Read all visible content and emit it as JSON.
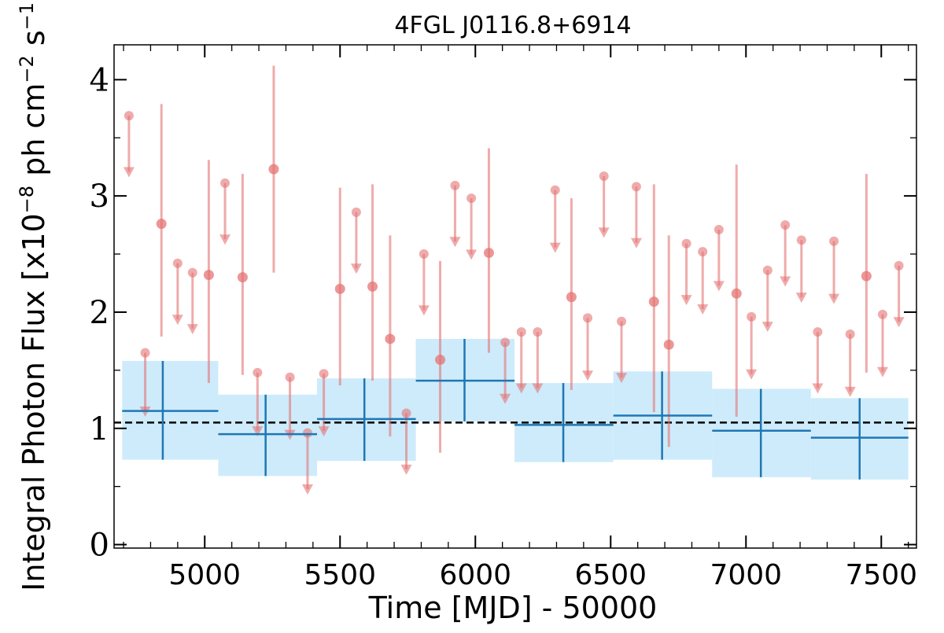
{
  "chart_data": {
    "type": "scatter",
    "title": "4FGL J0116.8+6914",
    "xlabel": "Time [MJD] - 50000",
    "ylabel_parts": {
      "pre": "Integral Photon Flux [x10",
      "exp1": "−8",
      "mid": " ph cm",
      "exp2": "−2",
      "mid2": " s",
      "exp3": "−1",
      "post": "]"
    },
    "xlim": [
      4665,
      7630
    ],
    "ylim": [
      -0.03,
      4.3
    ],
    "x_ticks": [
      5000,
      5500,
      6000,
      6500,
      7000,
      7500
    ],
    "x_tick_labels": [
      "5000",
      "5500",
      "6000",
      "6500",
      "7000",
      "7500"
    ],
    "y_ticks": [
      0,
      1,
      2,
      3,
      4
    ],
    "y_tick_labels": [
      "0",
      "1",
      "2",
      "3",
      "4"
    ],
    "reference_line": {
      "y": 1.05,
      "style": "dashed"
    },
    "colors": {
      "short_bins": "#e57373",
      "long_bins_line": "#1f77b4",
      "long_bins_band": "#cdebfb",
      "reference": "#000000"
    },
    "detections": [
      {
        "x": 4840,
        "y": 2.76,
        "ylo": 1.79,
        "yhi": 3.79
      },
      {
        "x": 5015,
        "y": 2.32,
        "ylo": 1.39,
        "yhi": 3.31
      },
      {
        "x": 5140,
        "y": 2.3,
        "ylo": 1.46,
        "yhi": 3.19
      },
      {
        "x": 5255,
        "y": 3.23,
        "ylo": 2.34,
        "yhi": 4.12
      },
      {
        "x": 5500,
        "y": 2.2,
        "ylo": 1.37,
        "yhi": 3.07
      },
      {
        "x": 5620,
        "y": 2.22,
        "ylo": 1.41,
        "yhi": 3.1
      },
      {
        "x": 5685,
        "y": 1.77,
        "ylo": 0.93,
        "yhi": 2.66
      },
      {
        "x": 5870,
        "y": 1.59,
        "ylo": 0.79,
        "yhi": 2.44
      },
      {
        "x": 6050,
        "y": 2.51,
        "ylo": 1.65,
        "yhi": 3.41
      },
      {
        "x": 6355,
        "y": 2.13,
        "ylo": 1.33,
        "yhi": 2.98
      },
      {
        "x": 6660,
        "y": 2.09,
        "ylo": 1.14,
        "yhi": 3.1
      },
      {
        "x": 6715,
        "y": 1.72,
        "ylo": 0.84,
        "yhi": 2.66
      },
      {
        "x": 6965,
        "y": 2.16,
        "ylo": 1.1,
        "yhi": 3.27
      },
      {
        "x": 7445,
        "y": 2.31,
        "ylo": 1.48,
        "yhi": 3.19
      }
    ],
    "upper_limits": [
      {
        "x": 4720,
        "y": 3.69,
        "ylo": 3.18
      },
      {
        "x": 4780,
        "y": 1.65,
        "ylo": 1.12
      },
      {
        "x": 4900,
        "y": 2.42,
        "ylo": 1.91
      },
      {
        "x": 4955,
        "y": 2.34,
        "ylo": 1.83
      },
      {
        "x": 5075,
        "y": 3.11,
        "ylo": 2.6
      },
      {
        "x": 5195,
        "y": 1.48,
        "ylo": 0.95
      },
      {
        "x": 5315,
        "y": 1.44,
        "ylo": 0.92
      },
      {
        "x": 5380,
        "y": 0.96,
        "ylo": 0.45
      },
      {
        "x": 5440,
        "y": 1.47,
        "ylo": 0.95
      },
      {
        "x": 5560,
        "y": 2.86,
        "ylo": 2.35
      },
      {
        "x": 5745,
        "y": 1.13,
        "ylo": 0.62
      },
      {
        "x": 5810,
        "y": 2.5,
        "ylo": 1.99
      },
      {
        "x": 5925,
        "y": 3.09,
        "ylo": 2.58
      },
      {
        "x": 5985,
        "y": 2.98,
        "ylo": 2.47
      },
      {
        "x": 6110,
        "y": 1.74,
        "ylo": 1.23
      },
      {
        "x": 6170,
        "y": 1.83,
        "ylo": 1.32
      },
      {
        "x": 6230,
        "y": 1.83,
        "ylo": 1.32
      },
      {
        "x": 6295,
        "y": 3.05,
        "ylo": 2.53
      },
      {
        "x": 6415,
        "y": 1.95,
        "ylo": 1.43
      },
      {
        "x": 6475,
        "y": 3.17,
        "ylo": 2.66
      },
      {
        "x": 6540,
        "y": 1.92,
        "ylo": 1.41
      },
      {
        "x": 6595,
        "y": 3.08,
        "ylo": 2.57
      },
      {
        "x": 6780,
        "y": 2.59,
        "ylo": 2.08
      },
      {
        "x": 6840,
        "y": 2.52,
        "ylo": 2.0
      },
      {
        "x": 6900,
        "y": 2.71,
        "ylo": 2.2
      },
      {
        "x": 7020,
        "y": 1.96,
        "ylo": 1.44
      },
      {
        "x": 7080,
        "y": 2.36,
        "ylo": 1.85
      },
      {
        "x": 7145,
        "y": 2.75,
        "ylo": 2.24
      },
      {
        "x": 7205,
        "y": 2.62,
        "ylo": 2.1
      },
      {
        "x": 7265,
        "y": 1.83,
        "ylo": 1.32
      },
      {
        "x": 7325,
        "y": 2.61,
        "ylo": 2.09
      },
      {
        "x": 7385,
        "y": 1.81,
        "ylo": 1.29
      },
      {
        "x": 7505,
        "y": 1.98,
        "ylo": 1.46
      },
      {
        "x": 7565,
        "y": 2.4,
        "ylo": 1.89
      }
    ],
    "long_bins": [
      {
        "x0": 4695,
        "x1": 5050,
        "xc": 4845,
        "y": 1.15,
        "ylo": 0.73,
        "yhi": 1.58
      },
      {
        "x0": 5050,
        "x1": 5415,
        "xc": 5225,
        "y": 0.95,
        "ylo": 0.59,
        "yhi": 1.29
      },
      {
        "x0": 5415,
        "x1": 5780,
        "xc": 5590,
        "y": 1.08,
        "ylo": 0.72,
        "yhi": 1.43
      },
      {
        "x0": 5780,
        "x1": 6145,
        "xc": 5960,
        "y": 1.41,
        "ylo": 1.06,
        "yhi": 1.77
      },
      {
        "x0": 6145,
        "x1": 6510,
        "xc": 6325,
        "y": 1.03,
        "ylo": 0.71,
        "yhi": 1.39
      },
      {
        "x0": 6510,
        "x1": 6875,
        "xc": 6690,
        "y": 1.11,
        "ylo": 0.73,
        "yhi": 1.49
      },
      {
        "x0": 6875,
        "x1": 7240,
        "xc": 7055,
        "y": 0.98,
        "ylo": 0.58,
        "yhi": 1.34
      },
      {
        "x0": 7240,
        "x1": 7600,
        "xc": 7420,
        "y": 0.92,
        "ylo": 0.56,
        "yhi": 1.26
      }
    ]
  }
}
